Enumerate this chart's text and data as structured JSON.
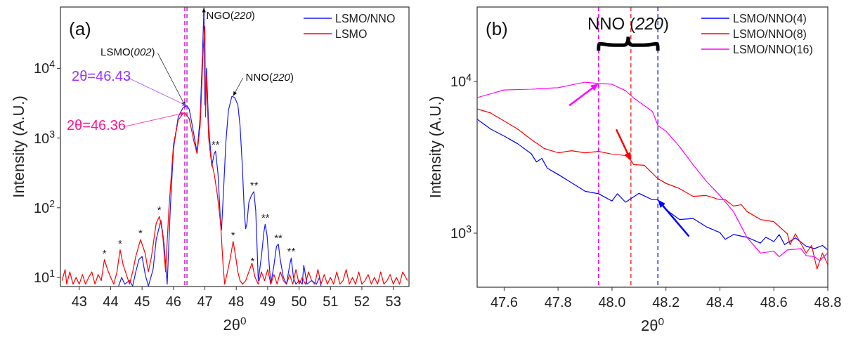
{
  "chart_data": [
    {
      "type": "line",
      "title": "(a)",
      "xlabel": "2θ$^{0}$",
      "ylabel": "Intensity (A.U.)",
      "log": "y",
      "grid": false,
      "legend": "top right",
      "xlim": [
        42.4,
        53.5
      ],
      "ylim": [
        7.4,
        76000
      ],
      "xticks": [
        43,
        44,
        45,
        46,
        47,
        48,
        49,
        50,
        51,
        52,
        53
      ],
      "yticks": [
        {
          "value": 10,
          "label": "10$^{1}$"
        },
        {
          "value": 100,
          "label": "10$^{2}$"
        },
        {
          "value": 1000,
          "label": "10$^{3}$"
        },
        {
          "value": 10000,
          "label": "10$^{4}$"
        }
      ],
      "series": [
        {
          "name": "LSMO/NNO",
          "color": "#1a1aff",
          "x": [
            44.25,
            44.35,
            44.45,
            44.6,
            44.7,
            44.8,
            44.9,
            45.0,
            45.1,
            45.2,
            45.35,
            45.45,
            45.6,
            45.7,
            45.8,
            45.9,
            46.0,
            46.15,
            46.3,
            46.36,
            46.43,
            46.5,
            46.6,
            46.75,
            46.85,
            46.93,
            46.97,
            47.0,
            47.05,
            47.12,
            47.22,
            47.3,
            47.34,
            47.42,
            47.5,
            47.53,
            47.6,
            47.67,
            47.75,
            47.86,
            47.95,
            48.05,
            48.12,
            48.19,
            48.26,
            48.3,
            48.34,
            48.4,
            48.48,
            48.56,
            48.62,
            48.7,
            48.8,
            48.88,
            48.92,
            48.98,
            49.05,
            49.1,
            49.2,
            49.28,
            49.34,
            49.4,
            49.5,
            49.6,
            49.7,
            49.75,
            49.82,
            49.9,
            50.0,
            50.1,
            50.15,
            50.25,
            50.4,
            50.55,
            50.65,
            50.7
          ],
          "values": [
            7.5,
            10,
            8,
            9,
            7.5,
            12,
            18,
            20,
            11,
            7.5,
            13,
            35,
            66,
            30,
            8,
            100,
            700,
            2000,
            2700,
            2820,
            2900,
            2600,
            1500,
            620,
            2000,
            20000,
            74000,
            3000,
            10000,
            1500,
            400,
            600,
            650,
            300,
            60,
            48,
            200,
            890,
            2500,
            3980,
            3800,
            3000,
            1500,
            417,
            80,
            50,
            60,
            120,
            150,
            170,
            90,
            9,
            20,
            45,
            58,
            40,
            15,
            8,
            15,
            28,
            30,
            18,
            10,
            8,
            15,
            19,
            10,
            8,
            9,
            8,
            15,
            8,
            9,
            8,
            10,
            7.5
          ]
        },
        {
          "name": "LSMO",
          "color": "#ff0000",
          "x": [
            42.45,
            42.55,
            42.6,
            42.7,
            42.8,
            42.9,
            43.0,
            43.1,
            43.2,
            43.3,
            43.4,
            43.5,
            43.6,
            43.7,
            43.8,
            43.9,
            44.0,
            44.1,
            44.2,
            44.3,
            44.4,
            44.5,
            44.6,
            44.7,
            44.8,
            44.95,
            45.1,
            45.2,
            45.3,
            45.45,
            45.55,
            45.65,
            45.75,
            45.85,
            46.0,
            46.15,
            46.3,
            46.36,
            46.5,
            46.65,
            46.75,
            46.85,
            46.95,
            47.0,
            47.02,
            47.05,
            47.12,
            47.2,
            47.3,
            47.4,
            47.5,
            47.58,
            47.63,
            47.72,
            47.8,
            47.9,
            47.98,
            48.05,
            48.12,
            48.2,
            48.3,
            48.4,
            48.5,
            48.6,
            48.7,
            48.8,
            48.9,
            49.0,
            49.1,
            49.2,
            49.3,
            49.4,
            49.5,
            49.6,
            49.7,
            49.8,
            49.9,
            50.0,
            50.1,
            50.2,
            50.3,
            50.4,
            50.5,
            50.6,
            50.7,
            50.8,
            50.9,
            51.0,
            51.1,
            51.2,
            51.3,
            51.4,
            51.5,
            51.6,
            51.7,
            51.8,
            51.9,
            52.0,
            52.1,
            52.2,
            52.3,
            52.4,
            52.5,
            52.6,
            52.7,
            52.8,
            52.9,
            53.0,
            53.1,
            53.2,
            53.3,
            53.45
          ],
          "values": [
            9,
            13,
            8,
            12,
            8,
            10,
            8,
            11,
            8,
            10,
            12,
            8,
            11,
            9,
            18,
            13,
            10,
            8,
            12,
            25,
            15,
            11,
            8,
            12,
            20,
            35,
            22,
            12,
            20,
            60,
            75,
            45,
            12,
            90,
            800,
            1800,
            2250,
            2300,
            1900,
            900,
            600,
            1500,
            20000,
            40000,
            2000,
            8000,
            1000,
            480,
            300,
            150,
            60,
            15,
            8,
            12,
            18,
            33,
            20,
            12,
            9,
            8,
            9,
            12,
            16,
            10,
            8,
            12,
            9,
            13,
            8,
            11,
            8,
            12,
            9,
            8,
            11,
            8,
            13,
            8,
            10,
            8,
            12,
            9,
            8,
            13,
            8,
            11,
            8,
            10,
            8,
            12,
            8,
            9,
            13,
            8,
            10,
            8,
            12,
            8,
            9,
            11,
            8,
            10,
            8,
            12,
            8,
            9,
            11,
            8,
            10,
            8,
            12,
            9
          ]
        }
      ],
      "ref_lines": [
        {
          "axis": "x",
          "value": 46.36,
          "color": "#ff1493",
          "line_style": "dashed"
        },
        {
          "axis": "x",
          "value": 46.43,
          "color": "#9933ff",
          "line_style": "dashed"
        }
      ],
      "annotations": [
        {
          "text": "NGO(220)",
          "x": 46.97,
          "y": 74000
        },
        {
          "text": "NNO(220)",
          "x": 47.9,
          "y": 4000
        },
        {
          "text": "LSMO(002)",
          "x": 46.38,
          "y": 2850
        },
        {
          "text": "2θ=46.43",
          "x": 46.43,
          "y": 2900
        },
        {
          "text": "2θ=46.36",
          "x": 46.36,
          "y": 2300
        },
        {
          "text": "*",
          "x": 43.8,
          "y": 18
        },
        {
          "text": "*",
          "x": 44.3,
          "y": 25
        },
        {
          "text": "*",
          "x": 44.95,
          "y": 35
        },
        {
          "text": "*",
          "x": 45.55,
          "y": 75
        },
        {
          "text": "*",
          "x": 47.9,
          "y": 33
        },
        {
          "text": "*",
          "x": 48.52,
          "y": 14
        },
        {
          "text": "**",
          "x": 47.34,
          "y": 650
        },
        {
          "text": "**",
          "x": 48.57,
          "y": 170
        },
        {
          "text": "**",
          "x": 48.93,
          "y": 58
        },
        {
          "text": "**",
          "x": 49.34,
          "y": 30
        },
        {
          "text": "**",
          "x": 49.75,
          "y": 19
        }
      ]
    },
    {
      "type": "line",
      "title": "(b)",
      "xlabel": "2θ$^{0}$",
      "ylabel": "Intensity (A.U.)",
      "log": "y",
      "grid": false,
      "legend": "top right",
      "xlim": [
        47.5,
        48.8
      ],
      "ylim": [
        440,
        31000
      ],
      "xticks": [
        47.6,
        47.8,
        {
          "value": 48,
          "label": "48.0"
        },
        48.2,
        48.4,
        48.6,
        48.8
      ],
      "yticks": [
        {
          "value": 1000,
          "label": "10$^{3}$"
        },
        {
          "value": 10000,
          "label": "10$^{4}$"
        }
      ],
      "series": [
        {
          "name": "LSMO/NNO(4)",
          "color": "#0000ff",
          "x": [
            47.5,
            47.55,
            47.6,
            47.65,
            47.7,
            47.72,
            47.74,
            47.76,
            47.8,
            47.85,
            47.9,
            47.95,
            48.0,
            48.02,
            48.05,
            48.1,
            48.15,
            48.17,
            48.2,
            48.25,
            48.3,
            48.35,
            48.4,
            48.42,
            48.45,
            48.5,
            48.55,
            48.57,
            48.6,
            48.62,
            48.64,
            48.68,
            48.72,
            48.75,
            48.78,
            48.8
          ],
          "values": [
            5640,
            4860,
            4370,
            3890,
            3350,
            2950,
            3110,
            2680,
            2440,
            2150,
            1890,
            1820,
            1630,
            1820,
            1600,
            1830,
            1660,
            1660,
            1430,
            1230,
            1250,
            1100,
            1010,
            910,
            980,
            940,
            860,
            940,
            880,
            980,
            840,
            930,
            820,
            790,
            830,
            775
          ]
        },
        {
          "name": "LSMO/NNO(8)",
          "color": "#ff0000",
          "x": [
            47.5,
            47.55,
            47.6,
            47.65,
            47.7,
            47.75,
            47.8,
            47.85,
            47.9,
            47.95,
            48.0,
            48.05,
            48.07,
            48.08,
            48.12,
            48.17,
            48.2,
            48.25,
            48.3,
            48.35,
            48.4,
            48.42,
            48.45,
            48.48,
            48.5,
            48.55,
            48.6,
            48.65,
            48.66,
            48.68,
            48.72,
            48.74,
            48.76,
            48.78,
            48.8
          ],
          "values": [
            6600,
            6200,
            5500,
            4860,
            4150,
            3610,
            3390,
            3500,
            3390,
            3460,
            3320,
            3250,
            3020,
            2830,
            2800,
            2290,
            2130,
            1970,
            1750,
            1770,
            1660,
            1660,
            1510,
            1540,
            1390,
            1230,
            1190,
            990,
            840,
            990,
            740,
            830,
            580,
            740,
            620
          ]
        },
        {
          "name": "LSMO/NNO(16)",
          "color": "#ff00ff",
          "x": [
            47.5,
            47.6,
            47.7,
            47.8,
            47.9,
            47.95,
            48.0,
            48.05,
            48.08,
            48.15,
            48.17,
            48.2,
            48.25,
            48.3,
            48.35,
            48.4,
            48.45,
            48.5,
            48.55,
            48.6,
            48.62,
            48.65,
            48.7,
            48.72,
            48.75,
            48.77,
            48.8
          ],
          "values": [
            7830,
            8800,
            8900,
            9100,
            9900,
            9700,
            9600,
            8700,
            7800,
            6350,
            5130,
            4710,
            3730,
            2830,
            2200,
            1770,
            1390,
            940,
            740,
            760,
            700,
            775,
            790,
            710,
            700,
            660,
            740
          ]
        }
      ],
      "ref_lines": [
        {
          "axis": "x",
          "value": 47.95,
          "color": "#ff00ff",
          "line_style": "dashed"
        },
        {
          "axis": "x",
          "value": 48.07,
          "color": "#ff3333",
          "line_style": "dashed"
        },
        {
          "axis": "x",
          "value": 48.17,
          "color": "#3333ff",
          "line_style": "dashed"
        }
      ],
      "annotations": [
        {
          "text": "NNO (220)",
          "x": 48.06,
          "y": 22000
        }
      ]
    }
  ]
}
